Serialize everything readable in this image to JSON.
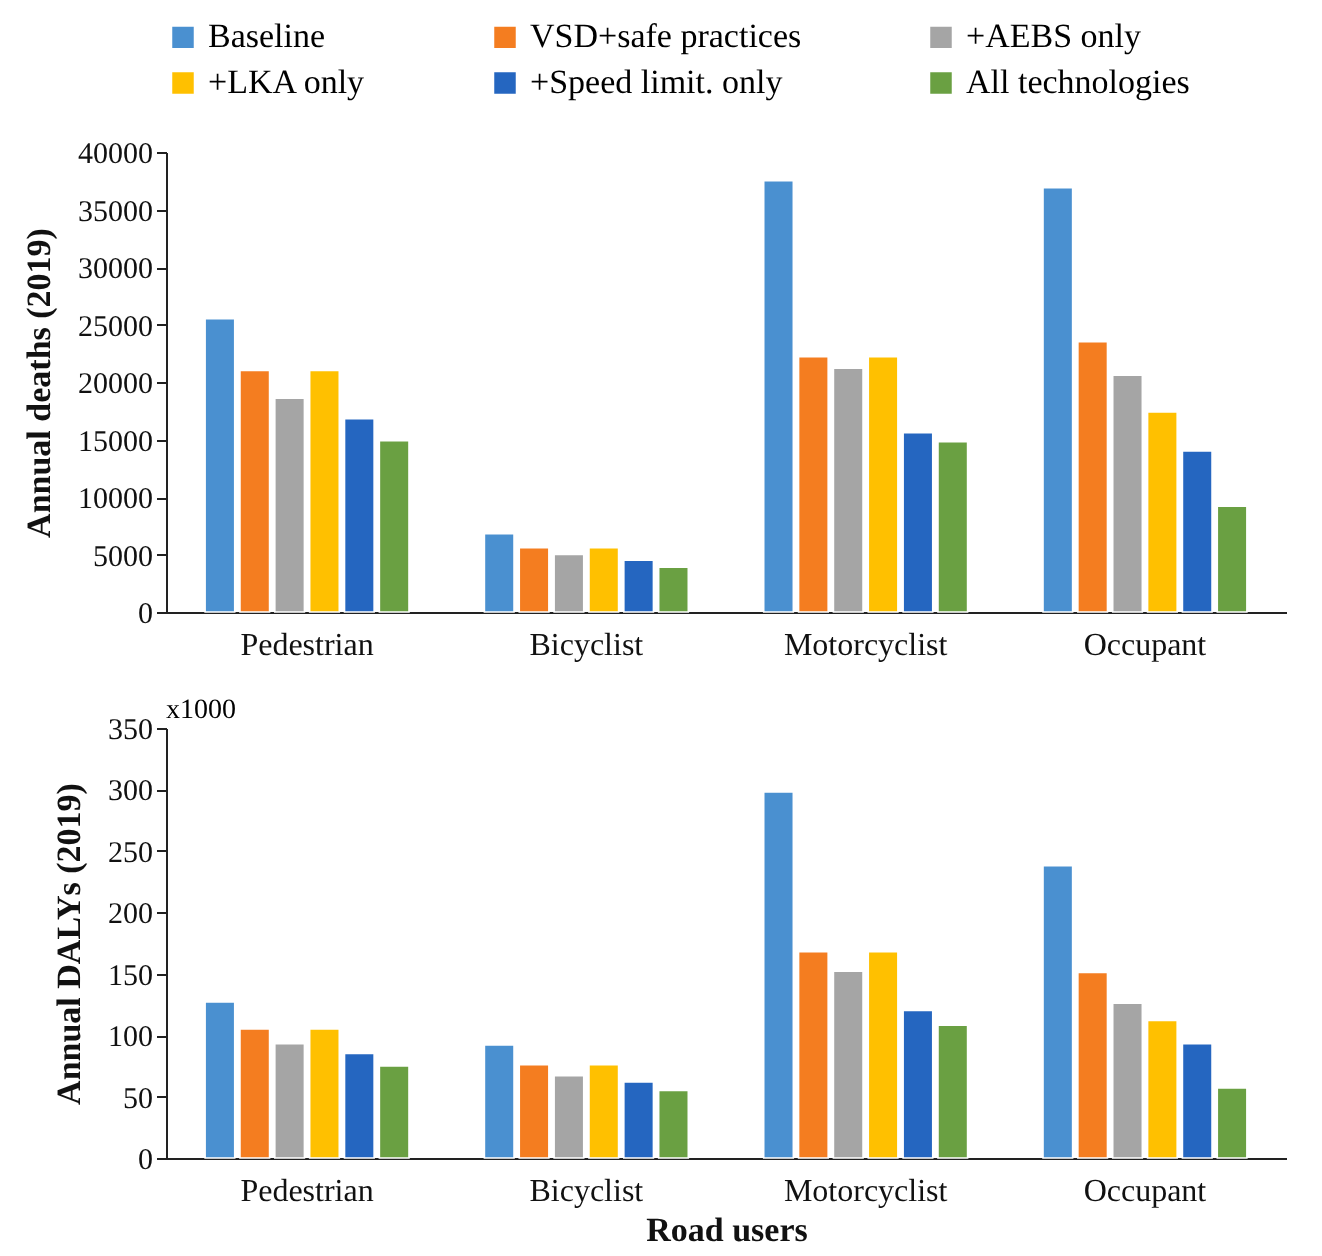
{
  "chart_data": [
    {
      "type": "bar",
      "ylabel": "Annual deaths (2019)",
      "categories": [
        "Pedestrian",
        "Bicyclist",
        "Motorcyclist",
        "Occupant"
      ],
      "ylim": [
        0,
        40000
      ],
      "yticks": [
        0,
        5000,
        10000,
        15000,
        20000,
        25000,
        30000,
        35000,
        40000
      ],
      "legend": "top",
      "grid": false,
      "series": [
        {
          "name": "Baseline",
          "color": "#4a90d0",
          "values": [
            25500,
            6800,
            37500,
            36900
          ]
        },
        {
          "name": "VSD+safe practices",
          "color": "#f47d20",
          "values": [
            21000,
            5600,
            22200,
            23500
          ]
        },
        {
          "name": "+AEBS only",
          "color": "#a5a5a5",
          "values": [
            18600,
            5000,
            21200,
            20600
          ]
        },
        {
          "name": "+LKA only",
          "color": "#ffc000",
          "values": [
            21000,
            5600,
            22200,
            17400
          ]
        },
        {
          "name": "+Speed limit. only",
          "color": "#2566c0",
          "values": [
            16800,
            4500,
            15600,
            14000
          ]
        },
        {
          "name": "All technologies",
          "color": "#6aa042",
          "values": [
            14900,
            3900,
            14800,
            9200
          ]
        }
      ]
    },
    {
      "type": "bar",
      "ylabel": "Annual DALYs (2019)",
      "xlabel": "Road users",
      "annotations": [
        "x1000"
      ],
      "categories": [
        "Pedestrian",
        "Bicyclist",
        "Motorcyclist",
        "Occupant"
      ],
      "ylim": [
        0,
        350
      ],
      "yticks": [
        0,
        50,
        100,
        150,
        200,
        250,
        300,
        350
      ],
      "grid": false,
      "series": [
        {
          "name": "Baseline",
          "color": "#4a90d0",
          "values": [
            127,
            92,
            298,
            238
          ]
        },
        {
          "name": "VSD+safe practices",
          "color": "#f47d20",
          "values": [
            105,
            76,
            168,
            151
          ]
        },
        {
          "name": "+AEBS only",
          "color": "#a5a5a5",
          "values": [
            93,
            67,
            152,
            126
          ]
        },
        {
          "name": "+LKA only",
          "color": "#ffc000",
          "values": [
            105,
            76,
            168,
            112
          ]
        },
        {
          "name": "+Speed limit. only",
          "color": "#2566c0",
          "values": [
            85,
            62,
            120,
            93
          ]
        },
        {
          "name": "All technologies",
          "color": "#6aa042",
          "values": [
            75,
            55,
            108,
            57
          ]
        }
      ]
    }
  ]
}
